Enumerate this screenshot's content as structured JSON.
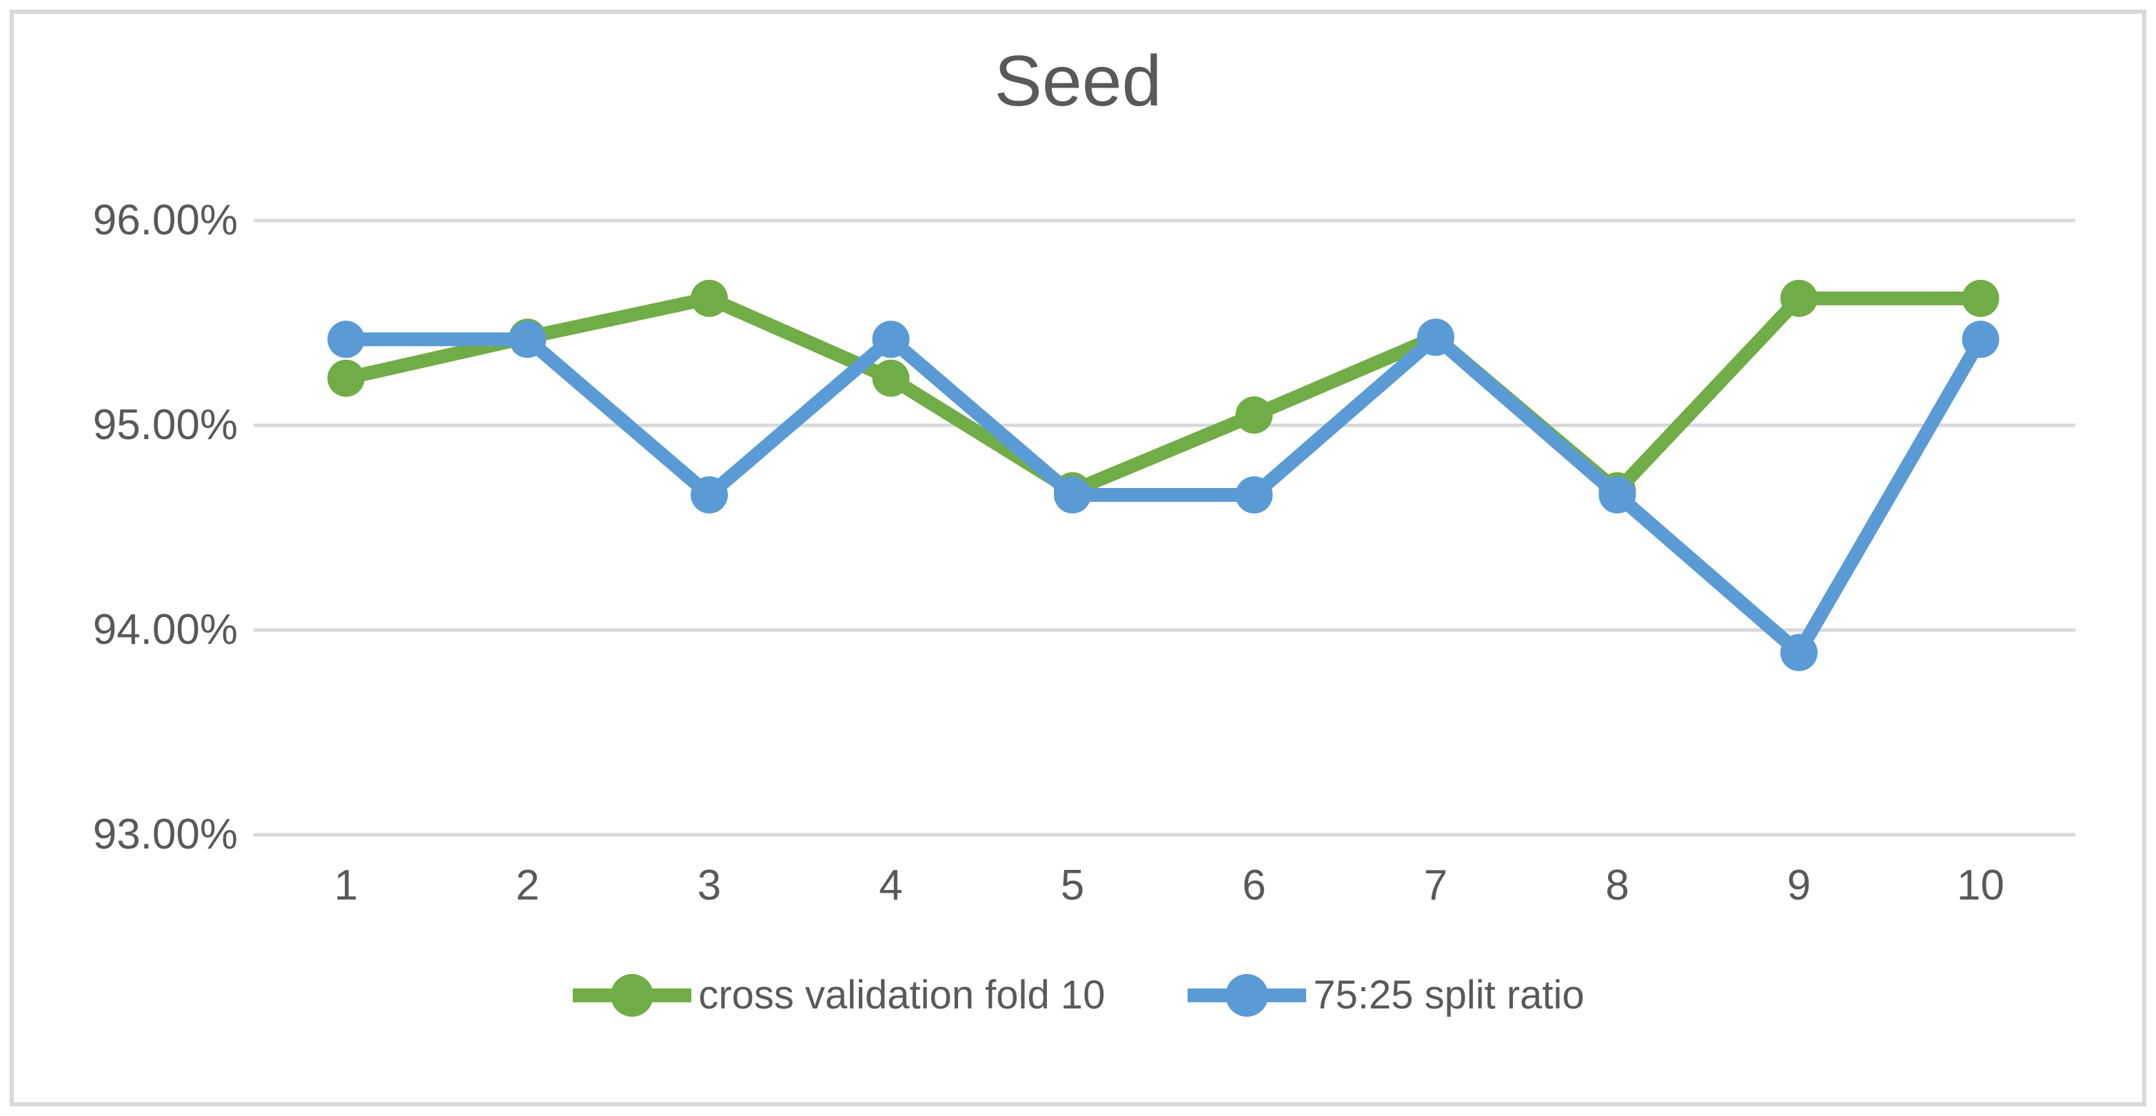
{
  "title": "Seed",
  "colors": {
    "series_green": "#70AD47",
    "series_blue": "#5B9BD5",
    "text": "#595959",
    "gridline": "#D9D9D9",
    "border": "#D9D9D9",
    "background": "#FFFFFF"
  },
  "y_axis": {
    "tick_labels": [
      "96.00%",
      "95.00%",
      "94.00%",
      "93.00%"
    ],
    "tick_values": [
      96,
      95,
      94,
      93
    ]
  },
  "x_axis": {
    "labels": [
      "1",
      "2",
      "3",
      "4",
      "5",
      "6",
      "7",
      "8",
      "9",
      "10"
    ]
  },
  "legend": {
    "items": [
      {
        "label": "cross validation fold 10",
        "color": "#70AD47"
      },
      {
        "label": "75:25 split ratio",
        "color": "#5B9BD5"
      }
    ]
  },
  "chart_data": {
    "type": "line",
    "title": "Seed",
    "categories": [
      1,
      2,
      3,
      4,
      5,
      6,
      7,
      8,
      9,
      10
    ],
    "series": [
      {
        "name": "cross validation fold 10",
        "color": "#70AD47",
        "values": [
          95.23,
          95.43,
          95.62,
          95.23,
          94.68,
          95.05,
          95.43,
          94.68,
          95.62,
          95.62
        ]
      },
      {
        "name": "75:25 split ratio",
        "color": "#5B9BD5",
        "values": [
          95.42,
          95.42,
          94.66,
          95.42,
          94.66,
          94.66,
          95.43,
          94.66,
          93.89,
          95.42
        ]
      }
    ],
    "ylabel": "",
    "xlabel": "",
    "ylim": [
      93,
      96.5
    ],
    "y_tick_step": 1,
    "y_tick_format": "0.00%",
    "grid": "horizontal",
    "legend_position": "bottom",
    "marker": "circle"
  }
}
